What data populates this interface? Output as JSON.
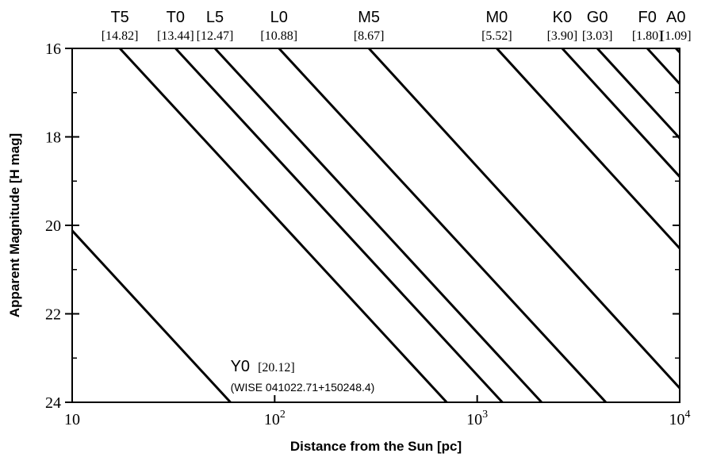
{
  "chart_data": {
    "type": "line",
    "title": "",
    "xlabel": "Distance from the Sun [pc]",
    "ylabel": "Apparent Magnitude [H mag]",
    "xscale": "log",
    "xlim": [
      10,
      10000
    ],
    "ylim": [
      24,
      16
    ],
    "y_inverted": true,
    "grid": false,
    "x_ticks": [
      {
        "value": 10,
        "label": "10"
      },
      {
        "value": 100,
        "label": "10",
        "exp": "2"
      },
      {
        "value": 1000,
        "label": "10",
        "exp": "3"
      },
      {
        "value": 10000,
        "label": "10",
        "exp": "4"
      }
    ],
    "y_ticks": [
      16,
      18,
      20,
      22,
      24
    ],
    "series": [
      {
        "name": "T5",
        "abs_mag": "[14.82]",
        "points": [
          [
            17.2,
            16
          ],
          [
            707,
            24
          ]
        ]
      },
      {
        "name": "T0",
        "abs_mag": "[13.44]",
        "points": [
          [
            32.4,
            16
          ],
          [
            1331,
            24
          ]
        ]
      },
      {
        "name": "L5",
        "abs_mag": "[12.47]",
        "points": [
          [
            50.7,
            16
          ],
          [
            2080,
            24
          ]
        ]
      },
      {
        "name": "L0",
        "abs_mag": "[10.88]",
        "points": [
          [
            105,
            16
          ],
          [
            4320,
            24
          ]
        ]
      },
      {
        "name": "M5",
        "abs_mag": "[8.67]",
        "points": [
          [
            292,
            16
          ],
          [
            10000,
            23.68
          ]
        ]
      },
      {
        "name": "M0",
        "abs_mag": "[5.52]",
        "points": [
          [
            1250,
            16
          ],
          [
            10000,
            20.52
          ]
        ]
      },
      {
        "name": "K0",
        "abs_mag": "[3.90]",
        "points": [
          [
            2630,
            16
          ],
          [
            10000,
            18.9
          ]
        ]
      },
      {
        "name": "G0",
        "abs_mag": "[3.03]",
        "points": [
          [
            3920,
            16
          ],
          [
            10000,
            18.03
          ]
        ]
      },
      {
        "name": "F0",
        "abs_mag": "[1.80]",
        "points": [
          [
            6920,
            16
          ],
          [
            10000,
            16.8
          ]
        ]
      },
      {
        "name": "A0",
        "abs_mag": "[1.09]",
        "points": [
          [
            9580,
            16
          ],
          [
            10000,
            16.09
          ]
        ]
      },
      {
        "name": "Y0",
        "abs_mag": "[20.12]",
        "points": [
          [
            10,
            20.12
          ],
          [
            60.5,
            24
          ]
        ]
      }
    ],
    "annotation": {
      "label": "Y0",
      "abs_mag": "[20.12]",
      "note": "(WISE 041022.71+150248.4)"
    }
  }
}
